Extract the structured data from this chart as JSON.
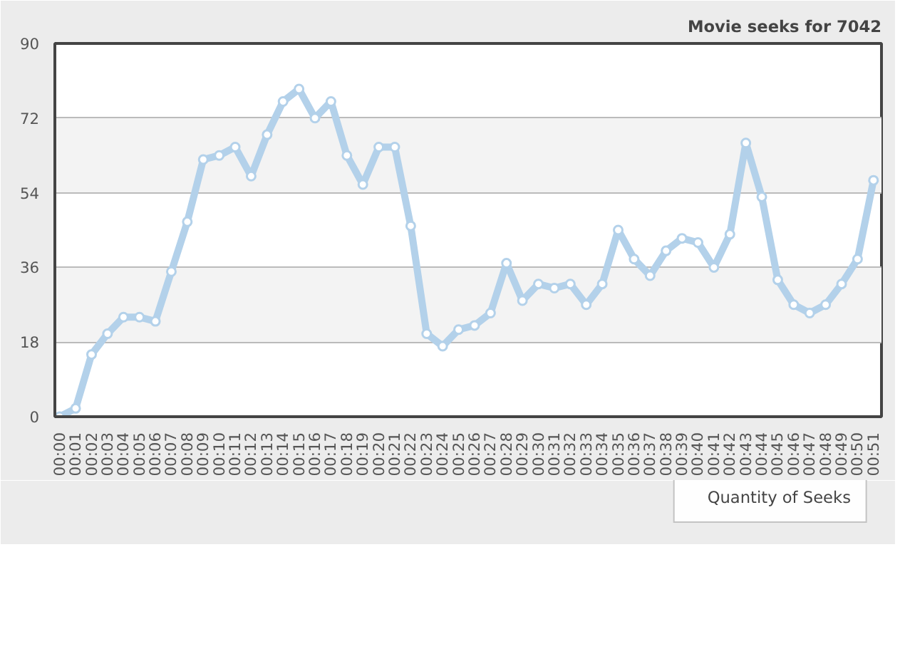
{
  "chart_data": {
    "type": "line",
    "title": "Movie seeks for 7042",
    "categories": [
      "00:00",
      "00:01",
      "00:02",
      "00:03",
      "00:04",
      "00:05",
      "00:06",
      "00:07",
      "00:08",
      "00:09",
      "00:10",
      "00:11",
      "00:12",
      "00:13",
      "00:14",
      "00:15",
      "00:16",
      "00:17",
      "00:18",
      "00:19",
      "00:20",
      "00:21",
      "00:22",
      "00:23",
      "00:24",
      "00:25",
      "00:26",
      "00:27",
      "00:28",
      "00:29",
      "00:30",
      "00:31",
      "00:32",
      "00:33",
      "00:34",
      "00:35",
      "00:36",
      "00:37",
      "00:38",
      "00:39",
      "00:40",
      "00:41",
      "00:42",
      "00:43",
      "00:44",
      "00:45",
      "00:46",
      "00:47",
      "00:48",
      "00:49",
      "00:50",
      "00:51"
    ],
    "series": [
      {
        "name": "Quantity of Seeks",
        "color": "#b3d1ea",
        "values": [
          0,
          2,
          15,
          20,
          24,
          24,
          23,
          35,
          47,
          62,
          63,
          65,
          58,
          68,
          76,
          79,
          72,
          76,
          63,
          56,
          65,
          65,
          46,
          20,
          17,
          21,
          22,
          25,
          37,
          28,
          32,
          31,
          32,
          27,
          32,
          45,
          38,
          34,
          40,
          43,
          42,
          36,
          44,
          66,
          53,
          33,
          27,
          25,
          27,
          32,
          38,
          57
        ]
      }
    ],
    "ylim": [
      0,
      90
    ],
    "yticks": [
      0,
      18,
      36,
      54,
      72,
      90
    ],
    "grid": "y",
    "legend": "bottom right",
    "marker": "circle",
    "line_style": "solid"
  }
}
